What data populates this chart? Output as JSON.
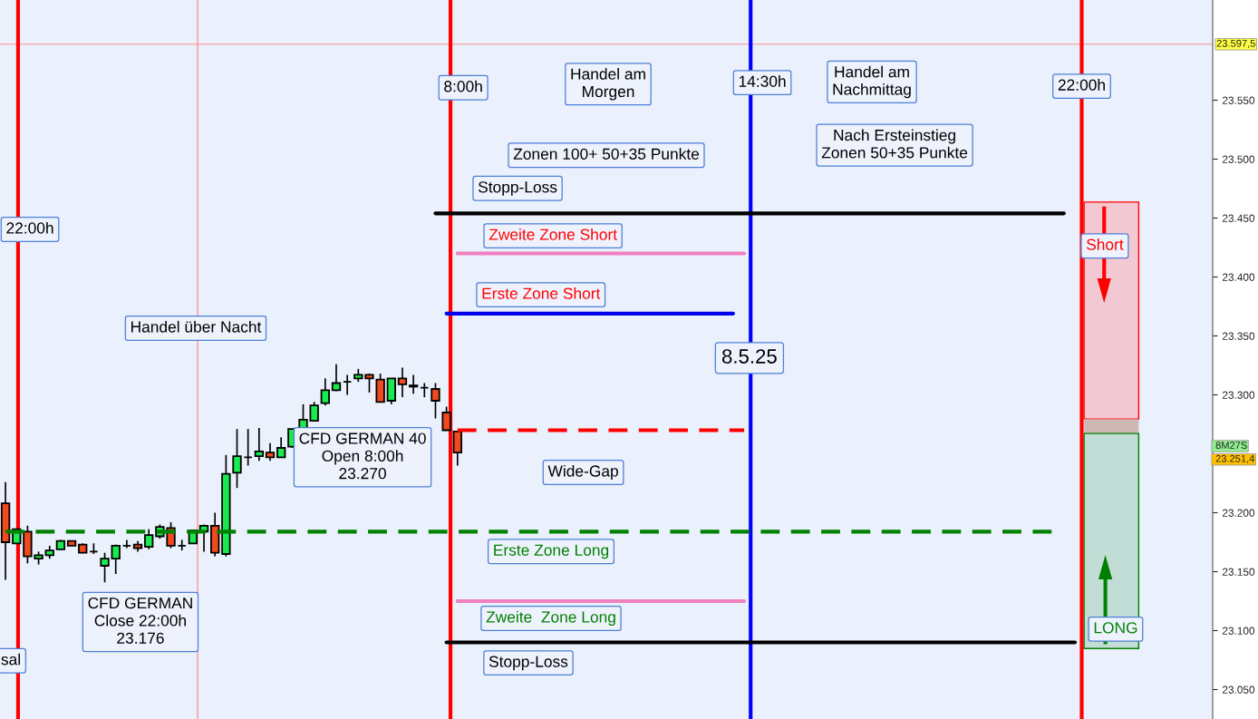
{
  "chart_data": {
    "type": "candlestick",
    "tick_labels": "y",
    "grid": false,
    "ylim": [
      23025,
      23635
    ],
    "yticks": [
      {
        "value": 23050,
        "label": "23.050"
      },
      {
        "value": 23100,
        "label": "23.100"
      },
      {
        "value": 23150,
        "label": "23.150"
      },
      {
        "value": 23200,
        "label": "23.200"
      },
      {
        "value": 23300,
        "label": "23.300"
      },
      {
        "value": 23350,
        "label": "23.350"
      },
      {
        "value": 23400,
        "label": "23.400"
      },
      {
        "value": 23450,
        "label": "23.450"
      },
      {
        "value": 23500,
        "label": "23.500"
      },
      {
        "value": 23550,
        "label": "23.550"
      }
    ],
    "categories": [
      null,
      null,
      null,
      null,
      null,
      null,
      null,
      null,
      null,
      null,
      null,
      null,
      null,
      null,
      null,
      null,
      null,
      null,
      null,
      null,
      null,
      null,
      null,
      null,
      null,
      null,
      null,
      null,
      null,
      null,
      null,
      null,
      null,
      null,
      null,
      null,
      null,
      null,
      null,
      null,
      null,
      null,
      null,
      null,
      null,
      null,
      null,
      null,
      null,
      null,
      null,
      null,
      null,
      null,
      null,
      null,
      null,
      null,
      null,
      null,
      null,
      null,
      null,
      null,
      null,
      null,
      null,
      null,
      null,
      null,
      null,
      null,
      null,
      null,
      null,
      null,
      null,
      null,
      null,
      null,
      null,
      null,
      null,
      null,
      null,
      null,
      null,
      null,
      null,
      null,
      null,
      null,
      null,
      null,
      null,
      null,
      null,
      null,
      null,
      null,
      null,
      null,
      null,
      null,
      null,
      null,
      null,
      null,
      null,
      null
    ],
    "series": [
      {
        "ohlc": [
          [
            23208,
            23226,
            23143,
            23175
          ],
          [
            23174,
            23186,
            23174,
            23186
          ],
          [
            23184,
            23189,
            23157,
            23163
          ],
          [
            23161,
            23167,
            23156,
            23164
          ],
          [
            23164,
            23172,
            23161,
            23168
          ],
          [
            23169,
            23177,
            23169,
            23176
          ],
          [
            23176,
            23176,
            23172,
            23172
          ],
          [
            23173,
            23174,
            23166,
            23166
          ],
          [
            23167,
            23174,
            23165,
            23167
          ],
          [
            23155,
            23166,
            23141,
            23161
          ],
          [
            23161,
            23173,
            23148,
            23172
          ],
          [
            23172,
            23177,
            23170,
            23172
          ],
          [
            23173,
            23176,
            23167,
            23170
          ],
          [
            23171,
            23186,
            23169,
            23181
          ],
          [
            23180,
            23190,
            23178,
            23188
          ],
          [
            23187,
            23192,
            23170,
            23172
          ],
          [
            23172,
            23177,
            23168,
            23172
          ],
          [
            23174,
            23185,
            23174,
            23185
          ],
          [
            23184,
            23190,
            23167,
            23189
          ],
          [
            23189,
            23200,
            23163,
            23166
          ],
          [
            23165,
            23249,
            23163,
            23233
          ],
          [
            23234,
            23271,
            23221,
            23248
          ],
          [
            23247,
            23271,
            23240,
            23247
          ],
          [
            23248,
            23272,
            23244,
            23252
          ],
          [
            23251,
            23259,
            23244,
            23247
          ],
          [
            23247,
            23264,
            23247,
            23255
          ],
          [
            23256,
            23271,
            23255,
            23271
          ],
          [
            23271,
            23292,
            23271,
            23279
          ],
          [
            23278,
            23294,
            23278,
            23291
          ],
          [
            23293,
            23314,
            23291,
            23304
          ],
          [
            23304,
            23326,
            23303,
            23310
          ],
          [
            23311,
            23317,
            23300,
            23311
          ],
          [
            23314,
            23322,
            23311,
            23317
          ],
          [
            23317,
            23318,
            23302,
            23314
          ],
          [
            23313,
            23318,
            23294,
            23294
          ],
          [
            23295,
            23314,
            23292,
            23314
          ],
          [
            23314,
            23323,
            23298,
            23309
          ],
          [
            23308,
            23317,
            23301,
            23307
          ],
          [
            23306,
            23310,
            23298,
            23306
          ],
          [
            23305,
            23310,
            23280,
            23295
          ],
          [
            23285,
            23290,
            23270,
            23270
          ],
          [
            23269,
            23269,
            23240,
            23251
          ],
          null,
          null,
          null,
          null,
          null,
          null,
          null,
          null,
          null,
          null,
          null,
          null,
          null,
          null,
          null,
          null,
          null,
          null,
          null,
          null,
          null,
          null,
          null,
          null,
          null,
          null,
          null,
          null,
          null,
          null,
          null,
          null,
          null,
          null,
          null,
          null,
          null,
          null,
          null,
          null,
          null,
          null,
          null,
          null,
          null,
          null,
          null,
          null,
          null,
          null,
          null,
          null,
          null,
          null,
          null,
          null,
          null,
          null,
          null,
          null,
          null,
          null,
          null,
          null,
          null,
          null,
          null,
          null
        ],
        "colors": [
          "#f04a1e",
          "#19ea4f",
          "#f04a1e",
          "#19ea4f",
          "#19ea4f",
          "#19ea4f",
          "#f04a1e",
          "#f04a1e",
          "#000000",
          "#19ea4f",
          "#19ea4f",
          "#000000",
          "#f04a1e",
          "#19ea4f",
          "#19ea4f",
          "#f04a1e",
          "#000000",
          "#19ea4f",
          "#19ea4f",
          "#f04a1e",
          "#19ea4f",
          "#19ea4f",
          "#000000",
          "#19ea4f",
          "#f04a1e",
          "#19ea4f",
          "#19ea4f",
          "#19ea4f",
          "#19ea4f",
          "#19ea4f",
          "#19ea4f",
          "#000000",
          "#19ea4f",
          "#f04a1e",
          "#f04a1e",
          "#19ea4f",
          "#f04a1e",
          "#f04a1e",
          "#000000",
          "#f04a1e",
          "#f04a1e",
          "#f04a1e",
          null,
          null,
          null,
          null,
          null,
          null,
          null,
          null,
          null,
          null,
          null,
          null,
          null,
          null,
          null,
          null,
          null,
          null,
          null,
          null,
          null,
          null,
          null,
          null,
          null,
          null,
          null,
          null,
          null,
          null,
          null,
          null,
          null,
          null,
          null,
          null,
          null,
          null,
          null,
          null,
          null,
          null,
          null,
          null,
          null,
          null,
          null,
          null,
          null,
          null,
          null,
          null,
          null,
          null,
          null,
          null,
          null,
          null,
          null,
          null,
          null,
          null,
          null,
          null,
          null,
          null,
          null,
          null
        ]
      },
      {
        "type": "line",
        "color": "#000000",
        "line_style": "solid",
        "values": [
          null,
          null,
          null,
          null,
          null,
          null,
          null,
          null,
          null,
          null,
          null,
          null,
          null,
          null,
          null,
          null,
          null,
          null,
          null,
          null,
          null,
          null,
          null,
          null,
          null,
          null,
          null,
          null,
          null,
          null,
          null,
          null,
          null,
          null,
          null,
          null,
          null,
          null,
          null,
          23454,
          23454,
          23454,
          23454,
          23454,
          23454,
          23454,
          23454,
          23454,
          23454,
          23454,
          23454,
          23454,
          23454,
          23454,
          23454,
          23454,
          23454,
          23454,
          23454,
          23454,
          23454,
          23454,
          23454,
          23454,
          23454,
          23454,
          23454,
          23454,
          23454,
          23454,
          23454,
          23454,
          23454,
          23454,
          23454,
          23454,
          23454,
          23454,
          23454,
          23454,
          23454,
          23454,
          23454,
          23454,
          23454,
          23454,
          23454,
          23454,
          23454,
          23454,
          23454,
          23454,
          23454,
          23454,
          23454,
          23454,
          23454,
          null,
          null,
          null,
          null,
          null,
          null,
          null,
          null,
          null,
          null,
          null,
          null,
          null
        ]
      },
      {
        "type": "line",
        "color": "#f080c0",
        "line_style": "solid",
        "values": [
          null,
          null,
          null,
          null,
          null,
          null,
          null,
          null,
          null,
          null,
          null,
          null,
          null,
          null,
          null,
          null,
          null,
          null,
          null,
          null,
          null,
          null,
          null,
          null,
          null,
          null,
          null,
          null,
          null,
          null,
          null,
          null,
          null,
          null,
          null,
          null,
          null,
          null,
          null,
          null,
          null,
          23420,
          23420,
          23420,
          23420,
          23420,
          23420,
          23420,
          23420,
          23420,
          23420,
          23420,
          23420,
          23420,
          23420,
          23420,
          23420,
          23420,
          23420,
          23420,
          23420,
          23420,
          23420,
          23420,
          23420,
          23420,
          23420,
          23420,
          null,
          null,
          null,
          null,
          null,
          null,
          null,
          null,
          null,
          null,
          null,
          null,
          null,
          null,
          null,
          null,
          null,
          null,
          null,
          null,
          null,
          null,
          null,
          null,
          null,
          null,
          null,
          null,
          null,
          null,
          null,
          null,
          null,
          null,
          null,
          null,
          null,
          null,
          null,
          null,
          null,
          null
        ]
      },
      {
        "type": "line",
        "color": "#0000ee",
        "line_style": "solid",
        "values": [
          null,
          null,
          null,
          null,
          null,
          null,
          null,
          null,
          null,
          null,
          null,
          null,
          null,
          null,
          null,
          null,
          null,
          null,
          null,
          null,
          null,
          null,
          null,
          null,
          null,
          null,
          null,
          null,
          null,
          null,
          null,
          null,
          null,
          null,
          null,
          null,
          null,
          null,
          null,
          null,
          23369,
          23369,
          23369,
          23369,
          23369,
          23369,
          23369,
          23369,
          23369,
          23369,
          23369,
          23369,
          23369,
          23369,
          23369,
          23369,
          23369,
          23369,
          23369,
          23369,
          23369,
          23369,
          23369,
          23369,
          23369,
          23369,
          23369,
          null,
          null,
          null,
          null,
          null,
          null,
          null,
          null,
          null,
          null,
          null,
          null,
          null,
          null,
          null,
          null,
          null,
          null,
          null,
          null,
          null,
          null,
          null,
          null,
          null,
          null,
          null,
          null,
          null,
          null,
          null,
          null,
          null,
          null,
          null,
          null,
          null,
          null,
          null,
          null,
          null,
          null,
          null
        ]
      },
      {
        "type": "line",
        "color": "#ff0000",
        "line_style": "dashed",
        "values": [
          null,
          null,
          null,
          null,
          null,
          null,
          null,
          null,
          null,
          null,
          null,
          null,
          null,
          null,
          null,
          null,
          null,
          null,
          null,
          null,
          null,
          null,
          null,
          null,
          null,
          null,
          null,
          null,
          null,
          null,
          null,
          null,
          null,
          null,
          null,
          null,
          null,
          null,
          null,
          null,
          null,
          23270,
          23270,
          23270,
          23270,
          23270,
          23270,
          23270,
          23270,
          23270,
          23270,
          23270,
          23270,
          23270,
          23270,
          23270,
          23270,
          23270,
          23270,
          23270,
          23270,
          23270,
          23270,
          23270,
          23270,
          23270,
          23270,
          23270,
          null,
          null,
          null,
          null,
          null,
          null,
          null,
          null,
          null,
          null,
          null,
          null,
          null,
          null,
          null,
          null,
          null,
          null,
          null,
          null,
          null,
          null,
          null,
          null,
          null,
          null,
          null,
          null,
          null,
          null,
          null,
          null,
          null,
          null,
          null,
          null,
          null,
          null,
          null,
          null,
          null,
          null
        ]
      },
      {
        "type": "line",
        "color": "#008000",
        "line_style": "dashed",
        "values": [
          23184,
          23184,
          23184,
          23184,
          23184,
          23184,
          23184,
          23184,
          23184,
          23184,
          23184,
          23184,
          23184,
          23184,
          23184,
          23184,
          23184,
          23184,
          23184,
          23184,
          23184,
          23184,
          23184,
          23184,
          23184,
          23184,
          23184,
          23184,
          23184,
          23184,
          23184,
          23184,
          23184,
          23184,
          23184,
          23184,
          23184,
          23184,
          23184,
          23184,
          23184,
          23184,
          23184,
          23184,
          23184,
          23184,
          23184,
          23184,
          23184,
          23184,
          23184,
          23184,
          23184,
          23184,
          23184,
          23184,
          23184,
          23184,
          23184,
          23184,
          23184,
          23184,
          23184,
          23184,
          23184,
          23184,
          23184,
          23184,
          23184,
          23184,
          23184,
          23184,
          23184,
          23184,
          23184,
          23184,
          23184,
          23184,
          23184,
          23184,
          23184,
          23184,
          23184,
          23184,
          23184,
          23184,
          23184,
          23184,
          23184,
          23184,
          23184,
          23184,
          23184,
          23184,
          23184,
          23184,
          null,
          null,
          null,
          null,
          null,
          null,
          null,
          null,
          null,
          null,
          null,
          null,
          null,
          null
        ]
      },
      {
        "type": "line",
        "color": "#f080c0",
        "line_style": "solid",
        "values": [
          null,
          null,
          null,
          null,
          null,
          null,
          null,
          null,
          null,
          null,
          null,
          null,
          null,
          null,
          null,
          null,
          null,
          null,
          null,
          null,
          null,
          null,
          null,
          null,
          null,
          null,
          null,
          null,
          null,
          null,
          null,
          null,
          null,
          null,
          null,
          null,
          null,
          null,
          null,
          null,
          null,
          23125,
          23125,
          23125,
          23125,
          23125,
          23125,
          23125,
          23125,
          23125,
          23125,
          23125,
          23125,
          23125,
          23125,
          23125,
          23125,
          23125,
          23125,
          23125,
          23125,
          23125,
          23125,
          23125,
          23125,
          23125,
          23125,
          23125,
          null,
          null,
          null,
          null,
          null,
          null,
          null,
          null,
          null,
          null,
          null,
          null,
          null,
          null,
          null,
          null,
          null,
          null,
          null,
          null,
          null,
          null,
          null,
          null,
          null,
          null,
          null,
          null,
          null,
          null,
          null,
          null,
          null,
          null,
          null,
          null,
          null,
          null,
          null,
          null,
          null,
          null
        ]
      },
      {
        "type": "line",
        "color": "#000000",
        "line_style": "solid",
        "values": [
          null,
          null,
          null,
          null,
          null,
          null,
          null,
          null,
          null,
          null,
          null,
          null,
          null,
          null,
          null,
          null,
          null,
          null,
          null,
          null,
          null,
          null,
          null,
          null,
          null,
          null,
          null,
          null,
          null,
          null,
          null,
          null,
          null,
          null,
          null,
          null,
          null,
          null,
          null,
          null,
          23090,
          23090,
          23090,
          23090,
          23090,
          23090,
          23090,
          23090,
          23090,
          23090,
          23090,
          23090,
          23090,
          23090,
          23090,
          23090,
          23090,
          23090,
          23090,
          23090,
          23090,
          23090,
          23090,
          23090,
          23090,
          23090,
          23090,
          23090,
          23090,
          23090,
          23090,
          23090,
          23090,
          23090,
          23090,
          23090,
          23090,
          23090,
          23090,
          23090,
          23090,
          23090,
          23090,
          23090,
          23090,
          23090,
          23090,
          23090,
          23090,
          23090,
          23090,
          23090,
          23090,
          23090,
          23090,
          23090,
          23090,
          23090,
          null,
          null,
          null,
          null,
          null,
          null,
          null,
          null,
          null,
          null,
          null,
          null
        ]
      }
    ],
    "ref_lines": [
      {
        "axis": "y",
        "value": 23597.5,
        "label": "23.597,5",
        "color": "#ff9090"
      }
    ],
    "annotations": [
      "8:00h",
      "Handel am\nMorgen",
      "14:30h",
      "Handel am\nNachmittag",
      "22:00h",
      "Zonen 100+ 50+35 Punkte",
      "Nach Ersteinstieg\nZonen 50+35 Punkte",
      "Stopp-Loss",
      "22:00h",
      "Zweite Zone Short",
      "Erste Zone Short",
      "Short",
      "Handel über Nacht",
      "8.5.25",
      "CFD GERMAN 40\nOpen 8:00h\n23.270",
      "Wide-Gap",
      "Erste Zone Long",
      "CFD GERMAN\nClose 22:00h\n23.176",
      "Zweite  Zone Long",
      "LONG",
      "Stopp-Loss",
      "sal",
      "8M27S",
      "23.251,4"
    ]
  }
}
